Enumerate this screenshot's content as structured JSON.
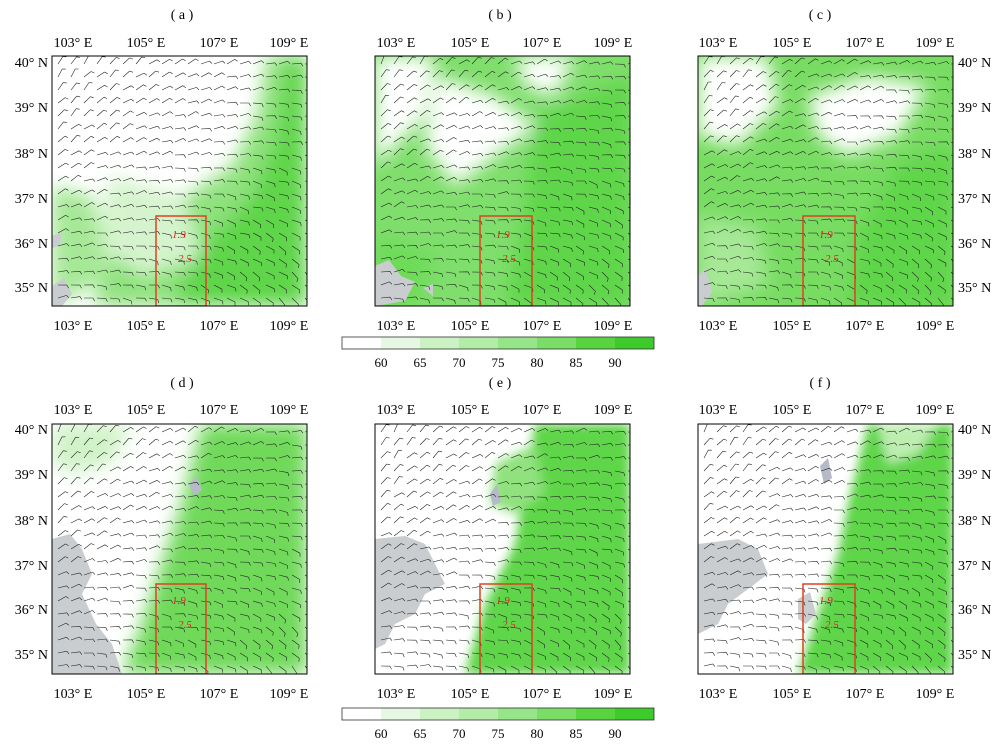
{
  "panels": [
    {
      "id": "a",
      "label": "( a )",
      "lat_side": "left"
    },
    {
      "id": "b",
      "label": "( b )",
      "lat_side": "none"
    },
    {
      "id": "c",
      "label": "( c )",
      "lat_side": "right"
    },
    {
      "id": "d",
      "label": "( d )",
      "lat_side": "left"
    },
    {
      "id": "e",
      "label": "( e )",
      "lat_side": "none"
    },
    {
      "id": "f",
      "label": "( f )",
      "lat_side": "right"
    }
  ],
  "lon_ticks": [
    "103° E",
    "105° E",
    "107° E",
    "109° E"
  ],
  "lat_ticks": [
    "40° N",
    "39° N",
    "38° N",
    "37° N",
    "36° N",
    "35° N"
  ],
  "box_labels": [
    "1.9",
    "2.5"
  ],
  "colorbar": {
    "ticks": [
      "60",
      "65",
      "70",
      "75",
      "80",
      "85",
      "90"
    ],
    "colors": [
      "#ffffff",
      "#e6f8e1",
      "#ccf2c3",
      "#b3eca6",
      "#96e588",
      "#79dd66",
      "#58d43f",
      "#3ccb2a"
    ]
  },
  "colors": {
    "terrain_gray": "#c9cdd0",
    "box_red": "#e04020",
    "wind_barb": "#222222"
  }
}
